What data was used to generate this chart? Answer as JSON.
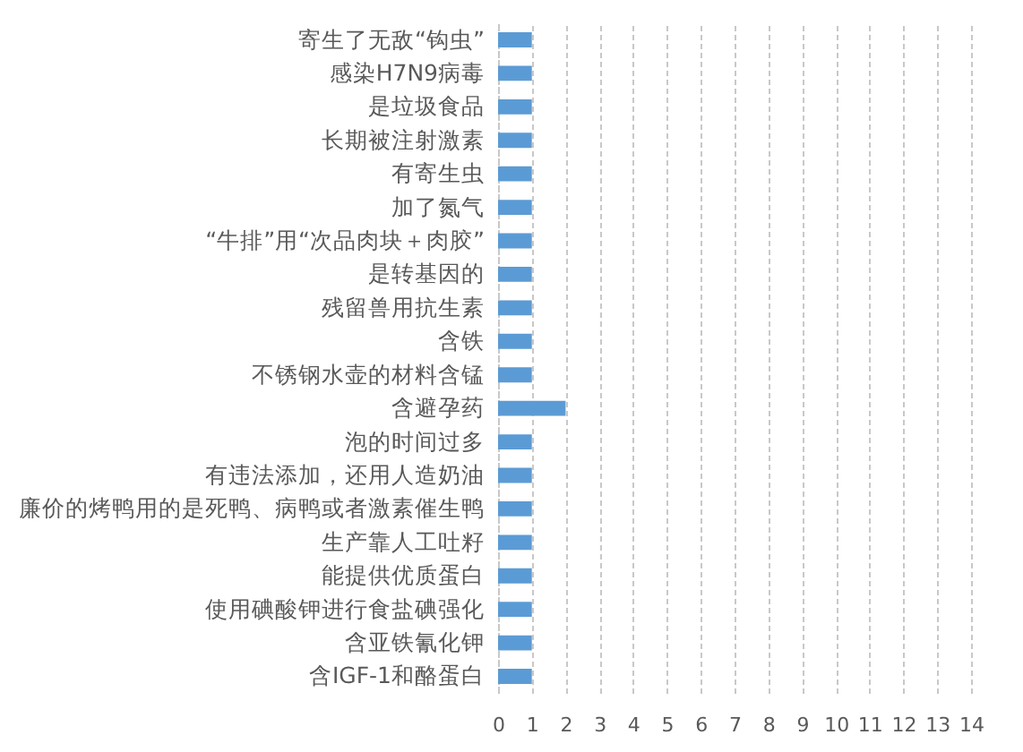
{
  "chart_data": {
    "type": "bar",
    "orientation": "horizontal",
    "categories": [
      "寄生了无敌“钩虫”",
      "感染H7N9病毒",
      "是垃圾食品",
      "长期被注射激素",
      "有寄生虫",
      "加了氮气",
      "“牛排”用“次品肉块＋肉胶”",
      "是转基因的",
      "残留兽用抗生素",
      "含铁",
      "不锈钢水壶的材料含锰",
      "含避孕药",
      "泡的时间过多",
      "有违法添加，还用人造奶油",
      "廉价的烤鸭用的是死鸭、病鸭或者激素催生鸭",
      "生产靠人工吐籽",
      "能提供优质蛋白",
      "使用碘酸钾进行食盐碘强化",
      "含亚铁氰化钾",
      "含IGF-1和酪蛋白"
    ],
    "values": [
      1,
      1,
      1,
      1,
      1,
      1,
      1,
      1,
      1,
      1,
      1,
      2,
      1,
      1,
      1,
      1,
      1,
      1,
      1,
      1
    ],
    "color": "#5b9bd5",
    "xlim": [
      0,
      14
    ],
    "xticks": [
      0,
      1,
      2,
      3,
      4,
      5,
      6,
      7,
      8,
      9,
      10,
      11,
      12,
      13,
      14
    ],
    "grid": "x"
  }
}
